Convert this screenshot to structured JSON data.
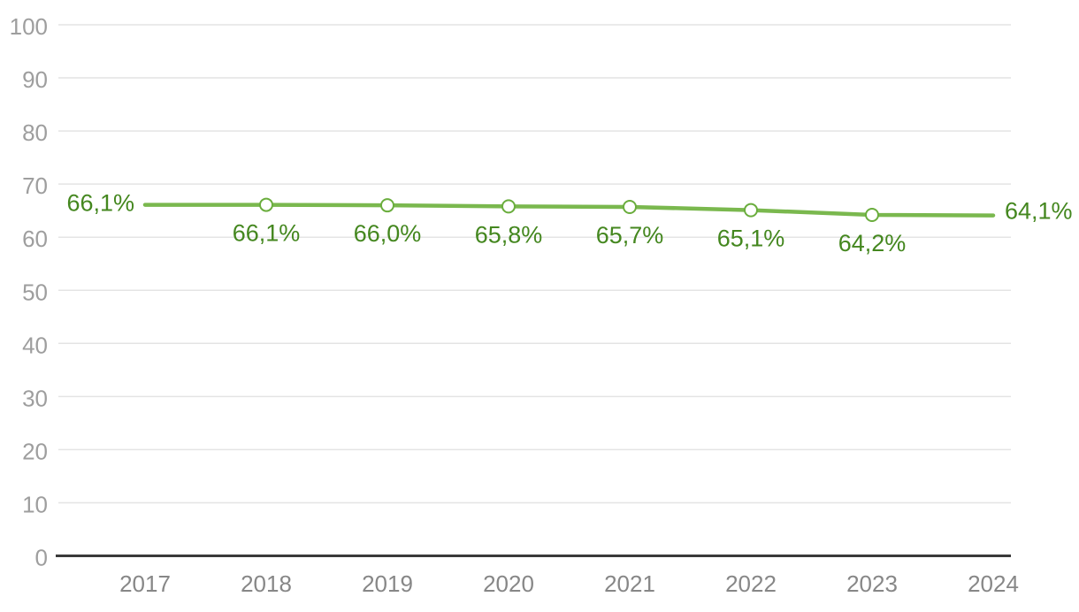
{
  "chart_data": {
    "type": "line",
    "title": "",
    "xlabel": "",
    "ylabel": "",
    "categories": [
      "2017",
      "2018",
      "2019",
      "2020",
      "2021",
      "2022",
      "2023",
      "2024"
    ],
    "series": [
      {
        "name": "percentage-series",
        "values": [
          66.1,
          66.1,
          66.0,
          65.8,
          65.7,
          65.1,
          64.2,
          64.1
        ],
        "point_labels": [
          "66,1%",
          "66,1%",
          "66,0%",
          "65,8%",
          "65,7%",
          "65,1%",
          "64,2%",
          "64,1%"
        ]
      }
    ],
    "ylim": [
      0,
      100
    ],
    "y_ticks": [
      0,
      10,
      20,
      30,
      40,
      50,
      60,
      70,
      80,
      90,
      100
    ],
    "y_tick_labels": [
      "0",
      "10",
      "20",
      "30",
      "40",
      "50",
      "60",
      "70",
      "80",
      "90",
      "100"
    ],
    "grid": "horizontal",
    "legend": "none",
    "marker_style": "hollow-circle-on-interior-points",
    "decimal_separator": ",",
    "colors": {
      "line": "#7ab84e",
      "marker_fill": "#ffffff",
      "marker_stroke": "#6aad3d",
      "point_label": "#44871f",
      "grid": "#e4e4e4",
      "axis": "#3a3a3a",
      "y_tick_text": "#9e9e9e",
      "x_tick_text": "#878787",
      "background": "#ffffff"
    }
  }
}
